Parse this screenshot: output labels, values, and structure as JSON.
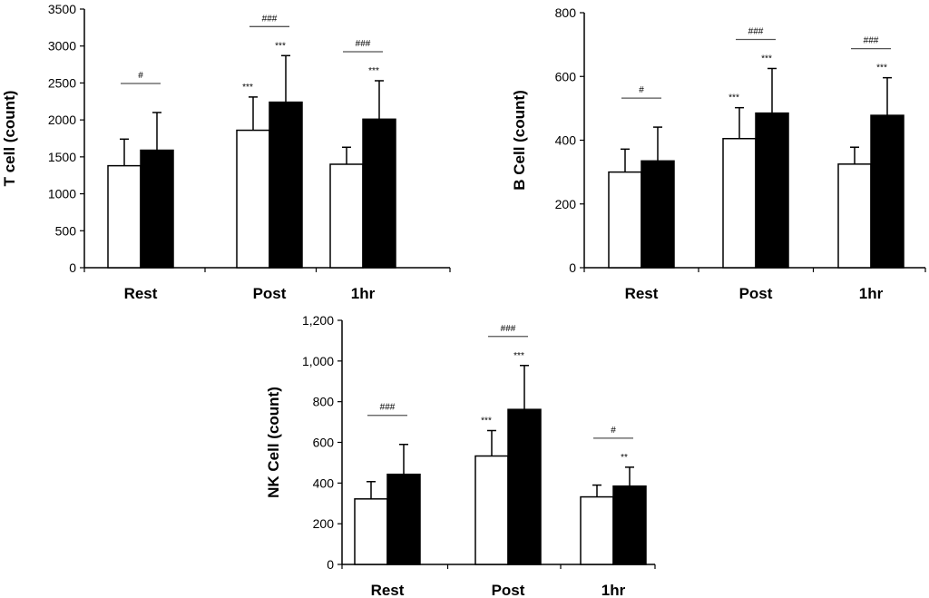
{
  "chart_data": [
    {
      "type": "bar",
      "ylabel": "T cell (count)",
      "ylim": [
        0,
        3500
      ],
      "yticks": [
        0,
        500,
        1000,
        1500,
        2000,
        2500,
        3000,
        3500
      ],
      "ytick_labels": [
        "0",
        "500",
        "1000",
        "1500",
        "2000",
        "2500",
        "3000",
        "3500"
      ],
      "categories": [
        "Rest",
        "Post",
        "1hr"
      ],
      "grid": false,
      "series": [
        {
          "fill": "#ffffff",
          "values": [
            1380,
            1860,
            1400
          ],
          "errors": [
            360,
            450,
            230
          ],
          "sig": [
            "",
            "***",
            ""
          ]
        },
        {
          "fill": "#000000",
          "values": [
            1590,
            2240,
            2010
          ],
          "errors": [
            510,
            630,
            520
          ],
          "sig": [
            "",
            "***",
            "***"
          ]
        }
      ],
      "group_sig": [
        "#",
        "###",
        "###"
      ]
    },
    {
      "type": "bar",
      "ylabel": "B Cell (count)",
      "ylim": [
        0,
        800
      ],
      "yticks": [
        0,
        200,
        400,
        600,
        800
      ],
      "ytick_labels": [
        "0",
        "200",
        "400",
        "600",
        "800"
      ],
      "categories": [
        "Rest",
        "Post",
        "1hr"
      ],
      "grid": false,
      "series": [
        {
          "fill": "#ffffff",
          "values": [
            300,
            405,
            325
          ],
          "errors": [
            72,
            97,
            53
          ],
          "sig": [
            "",
            "***",
            ""
          ]
        },
        {
          "fill": "#000000",
          "values": [
            335,
            485,
            478
          ],
          "errors": [
            106,
            140,
            118
          ],
          "sig": [
            "",
            "***",
            "***"
          ]
        }
      ],
      "group_sig": [
        "#",
        "###",
        "###"
      ]
    },
    {
      "type": "bar",
      "ylabel": "NK Cell (count)",
      "ylim": [
        0,
        1200
      ],
      "yticks": [
        0,
        200,
        400,
        600,
        800,
        1000,
        1200
      ],
      "ytick_labels": [
        "0",
        "200",
        "400",
        "600",
        "800",
        "1,000",
        "1,200"
      ],
      "categories": [
        "Rest",
        "Post",
        "1hr"
      ],
      "grid": false,
      "series": [
        {
          "fill": "#ffffff",
          "values": [
            322,
            533,
            332
          ],
          "errors": [
            85,
            125,
            58
          ],
          "sig": [
            "",
            "***",
            ""
          ]
        },
        {
          "fill": "#000000",
          "values": [
            443,
            762,
            385
          ],
          "errors": [
            147,
            216,
            93
          ],
          "sig": [
            "",
            "***",
            "**"
          ]
        }
      ],
      "group_sig": [
        "###",
        "###",
        "#"
      ]
    }
  ]
}
